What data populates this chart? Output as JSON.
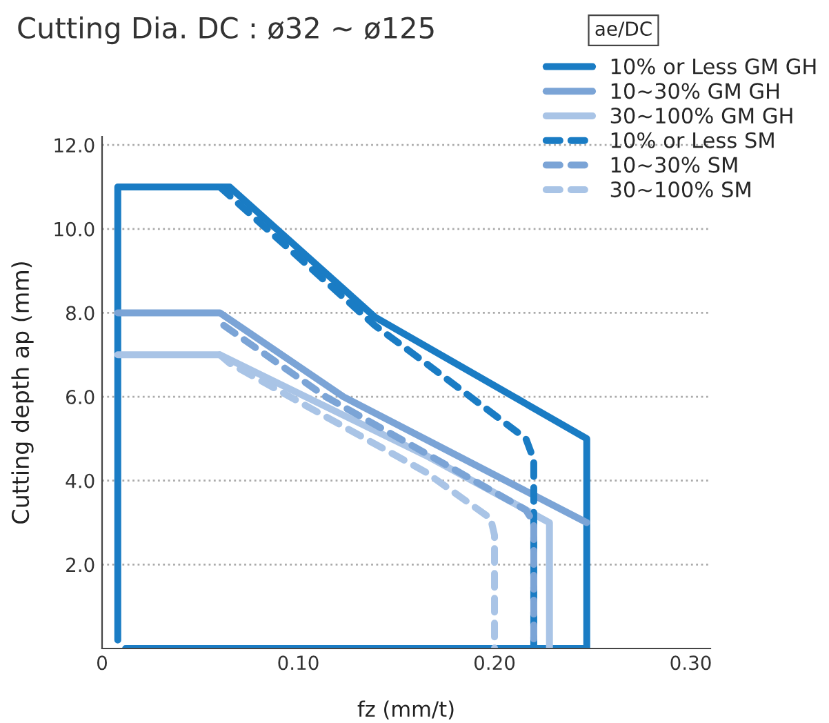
{
  "chart_data": {
    "type": "line",
    "title": "Cutting Dia. DC : ø32 ~ ø125",
    "legend_title": "ae/DC",
    "xlabel": "fz (mm/t)",
    "ylabel": "Cutting depth ap (mm)",
    "xlim": [
      0,
      0.31
    ],
    "xticks": [
      0,
      {
        "value": 0.1,
        "label": "0.10"
      },
      {
        "value": 0.2,
        "label": "0.20"
      },
      {
        "value": 0.3,
        "label": "0.30"
      }
    ],
    "ylim": [
      0,
      12.2
    ],
    "yticks": [
      {
        "value": 2,
        "label": "2.0"
      },
      {
        "value": 4,
        "label": "4.0"
      },
      {
        "value": 6,
        "label": "6.0"
      },
      {
        "value": 8,
        "label": "8.0"
      },
      {
        "value": 10,
        "label": "10.0"
      },
      {
        "value": 12,
        "label": "12.0"
      }
    ],
    "grid": "y",
    "legend": "top right",
    "marker": "none",
    "series": [
      {
        "name": "10% or Less GM GH",
        "color": "#1a7cc4",
        "line_style": "solid",
        "x": [
          0.012,
          0.247,
          0.247,
          0.139,
          0.065,
          0.008,
          0.008
        ],
        "values": [
          0,
          0,
          5.0,
          7.9,
          11,
          11,
          0.2
        ]
      },
      {
        "name": "10~30% GM GH",
        "color": "#7ba4d6",
        "line_style": "solid",
        "x": [
          0.008,
          0.06,
          0.123,
          0.247
        ],
        "values": [
          8,
          8,
          6.0,
          3.0
        ]
      },
      {
        "name": "30~100% GM GH",
        "color": "#a9c4e6",
        "line_style": "solid",
        "x": [
          0.008,
          0.06,
          0.165,
          0.228,
          0.228
        ],
        "values": [
          7,
          7,
          4.6,
          3.0,
          0
        ]
      },
      {
        "name": "10% or Less SM",
        "color": "#1a7cc4",
        "line_style": "dashed",
        "x": [
          0.06,
          0.139,
          0.165,
          0.216,
          0.22,
          0.22
        ],
        "values": [
          11,
          7.7,
          6.8,
          5.0,
          4.5,
          0
        ]
      },
      {
        "name": "10~30% SM",
        "color": "#7ba4d6",
        "line_style": "dashed",
        "x": [
          0.062,
          0.114,
          0.216,
          0.22,
          0.22
        ],
        "values": [
          7.7,
          6.0,
          3.3,
          3.0,
          0
        ]
      },
      {
        "name": "30~100% SM",
        "color": "#a9c4e6",
        "line_style": "dashed",
        "x": [
          0.06,
          0.065,
          0.165,
          0.198,
          0.2,
          0.2
        ],
        "values": [
          7,
          6.8,
          4.2,
          3.1,
          2.7,
          0
        ]
      }
    ]
  }
}
